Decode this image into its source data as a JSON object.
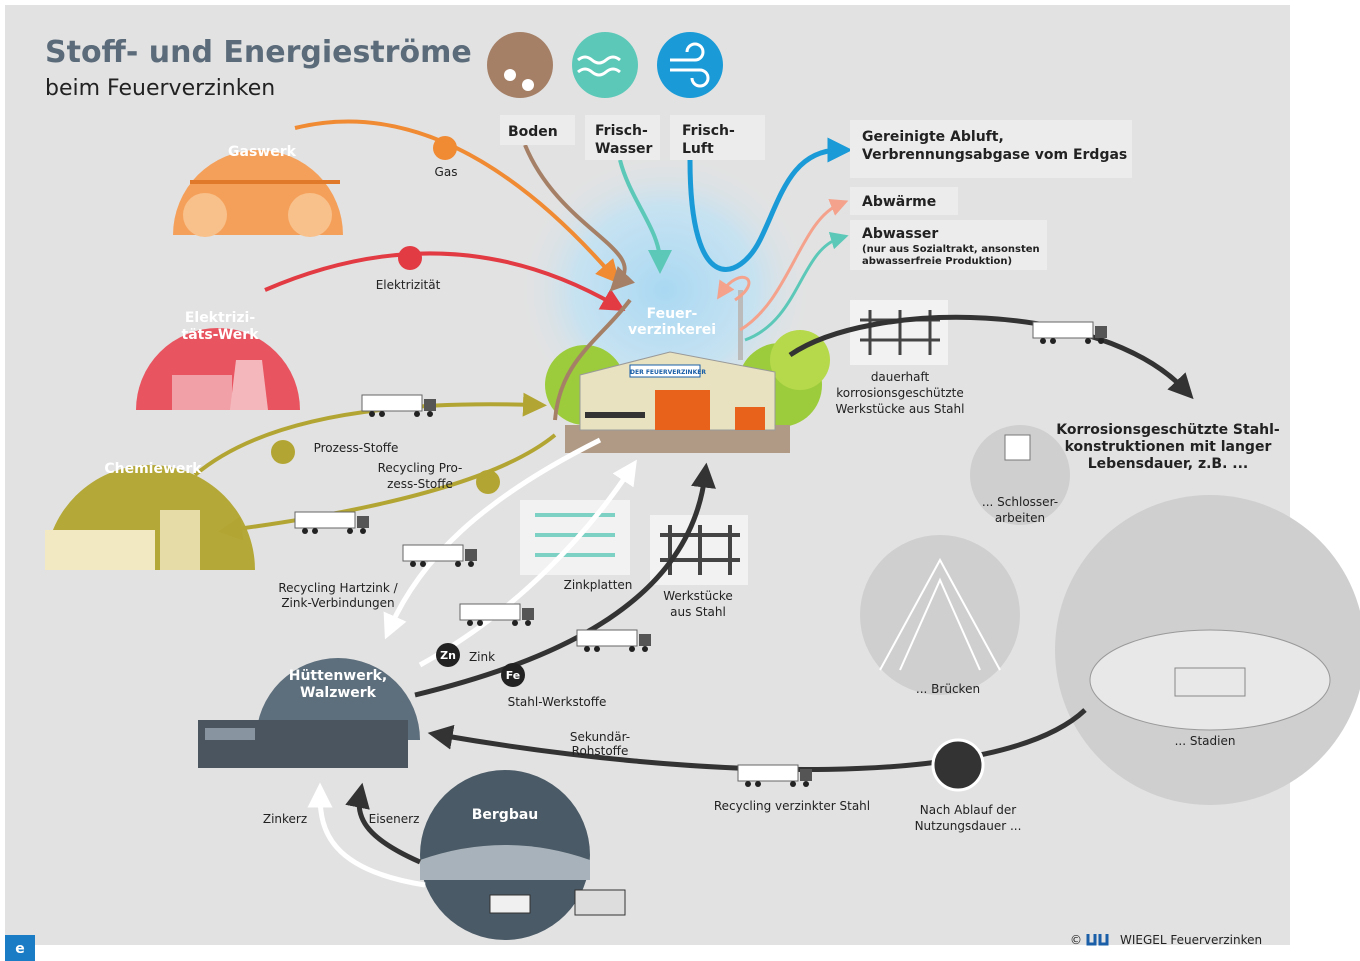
{
  "header": {
    "title": "Stoff- und Energieströme",
    "subtitle": "beim Feuerverzinken"
  },
  "inputs": {
    "gaswerk": "Gaswerk",
    "gas": "Gas",
    "ewerk": [
      "Elektrizi-",
      "täts-Werk"
    ],
    "elektrizitaet": "Elektrizität",
    "chemiewerk": "Chemiewerk",
    "prozess_stoffe": "Prozess-Stoffe",
    "recycling_prozess": [
      "Recycling Pro-",
      "zess-Stoffe"
    ],
    "recycling_hartzink": [
      "Recycling Hartzink /",
      "Zink-Verbindungen"
    ]
  },
  "resources": {
    "boden": "Boden",
    "wasser": [
      "Frisch-",
      "Wasser"
    ],
    "luft": [
      "Frisch-",
      "Luft"
    ]
  },
  "outputs": {
    "abluft": [
      "Gereinigte Abluft,",
      "Verbrennungsabgase vom Erdgas"
    ],
    "abwaerme": "Abwärme",
    "abwasser": "Abwasser",
    "abwasser_note": [
      "(nur aus Sozialtrakt, ansonsten",
      "abwasserfreie Produktion)"
    ]
  },
  "plant": {
    "label": [
      "Feuer-",
      "verzinkerei"
    ],
    "sign": "DER FEUERVERZINKER"
  },
  "products": {
    "workpieces": [
      "dauerhaft",
      "korrosionsgeschützte",
      "Werkstücke aus Stahl"
    ],
    "constructions": [
      "Korrosionsgeschützte Stahl-",
      "konstruktionen mit langer",
      "Lebensdauer, z.B. ..."
    ],
    "schlosser": [
      "... Schlosser-",
      "arbeiten"
    ],
    "bruecken": "... Brücken",
    "stadien": "... Stadien"
  },
  "supply": {
    "zinkplatten": "Zinkplatten",
    "werkstuecke": [
      "Werkstücke",
      "aus Stahl"
    ],
    "zn": "Zn",
    "zink": "Zink",
    "fe": "Fe",
    "stahl": "Stahl-Werkstoffe",
    "huettenwerk": [
      "Hüttenwerk,",
      "Walzwerk"
    ],
    "sekundaer": [
      "Sekundär-",
      "Rohstoffe"
    ],
    "recycling_stahl": "Recycling verzinkter Stahl",
    "nutzungsdauer": [
      "Nach Ablauf der",
      "Nutzungsdauer ..."
    ],
    "zinkerz": "Zinkerz",
    "eisenerz": "Eisenerz",
    "bergbau": "Bergbau"
  },
  "footer": {
    "copyright": "©",
    "brand": "WIEGEL Feuerverzinken",
    "badge": "e"
  }
}
